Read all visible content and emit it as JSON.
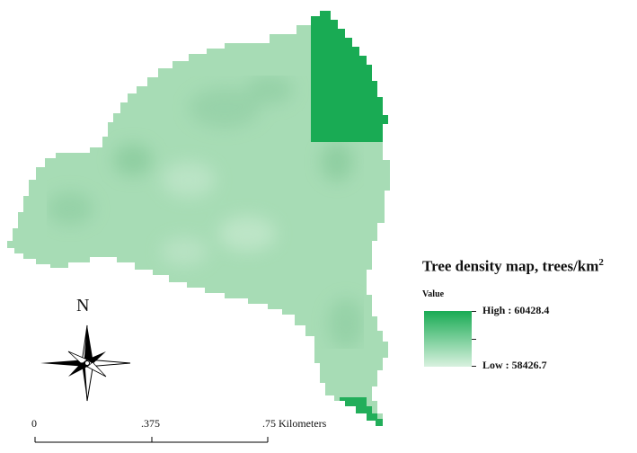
{
  "legend": {
    "title": "Tree density map, trees/km",
    "title_sup": "2",
    "value_label": "Value",
    "high_label": "High : 60428.4",
    "low_label": "Low : 58426.7",
    "high_color": "#19ab54",
    "low_color": "#d9f1df"
  },
  "map": {
    "region_color": "#a7dcb5",
    "region_dark_color": "#86c99a",
    "highlight_color": "#19ab54",
    "raster_high_value": 60428.4,
    "raster_low_value": 58426.7
  },
  "north_arrow": {
    "label": "N",
    "icon": "compass-rose-icon"
  },
  "scale_bar": {
    "labels": [
      "0",
      ".375",
      ".75 Kilometers"
    ],
    "ticks_km": [
      0,
      0.375,
      0.75
    ]
  }
}
